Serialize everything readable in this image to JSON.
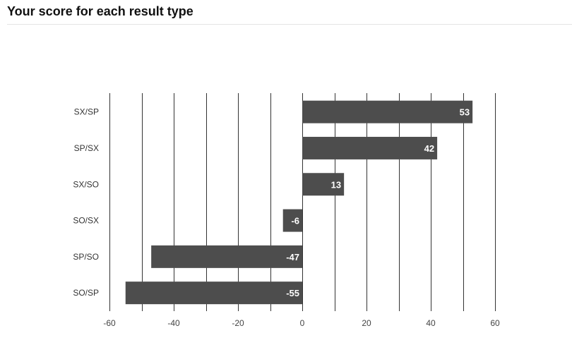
{
  "header": {
    "title": "Your score for each result type"
  },
  "chart_data": {
    "type": "bar",
    "orientation": "horizontal",
    "title": "Your score for each result type",
    "xlabel": "",
    "ylabel": "",
    "categories": [
      "SX/SP",
      "SP/SX",
      "SX/SO",
      "SO/SX",
      "SP/SO",
      "SO/SP"
    ],
    "values": [
      53,
      42,
      13,
      -6,
      -47,
      -55
    ],
    "data_labels": [
      "53",
      "42",
      "13",
      "-6",
      "-47",
      "-55"
    ],
    "xlim": [
      -60,
      60
    ],
    "x_ticks": [
      -60,
      -40,
      -20,
      0,
      20,
      40,
      60
    ],
    "x_tick_labels": [
      "-60",
      "-40",
      "-20",
      "0",
      "20",
      "40",
      "60"
    ],
    "gridline_step": 10,
    "grid": true,
    "legend": "none",
    "bar_color": "#4d4d4d",
    "label_color": "#ffffff",
    "grid_color": "#333333"
  }
}
